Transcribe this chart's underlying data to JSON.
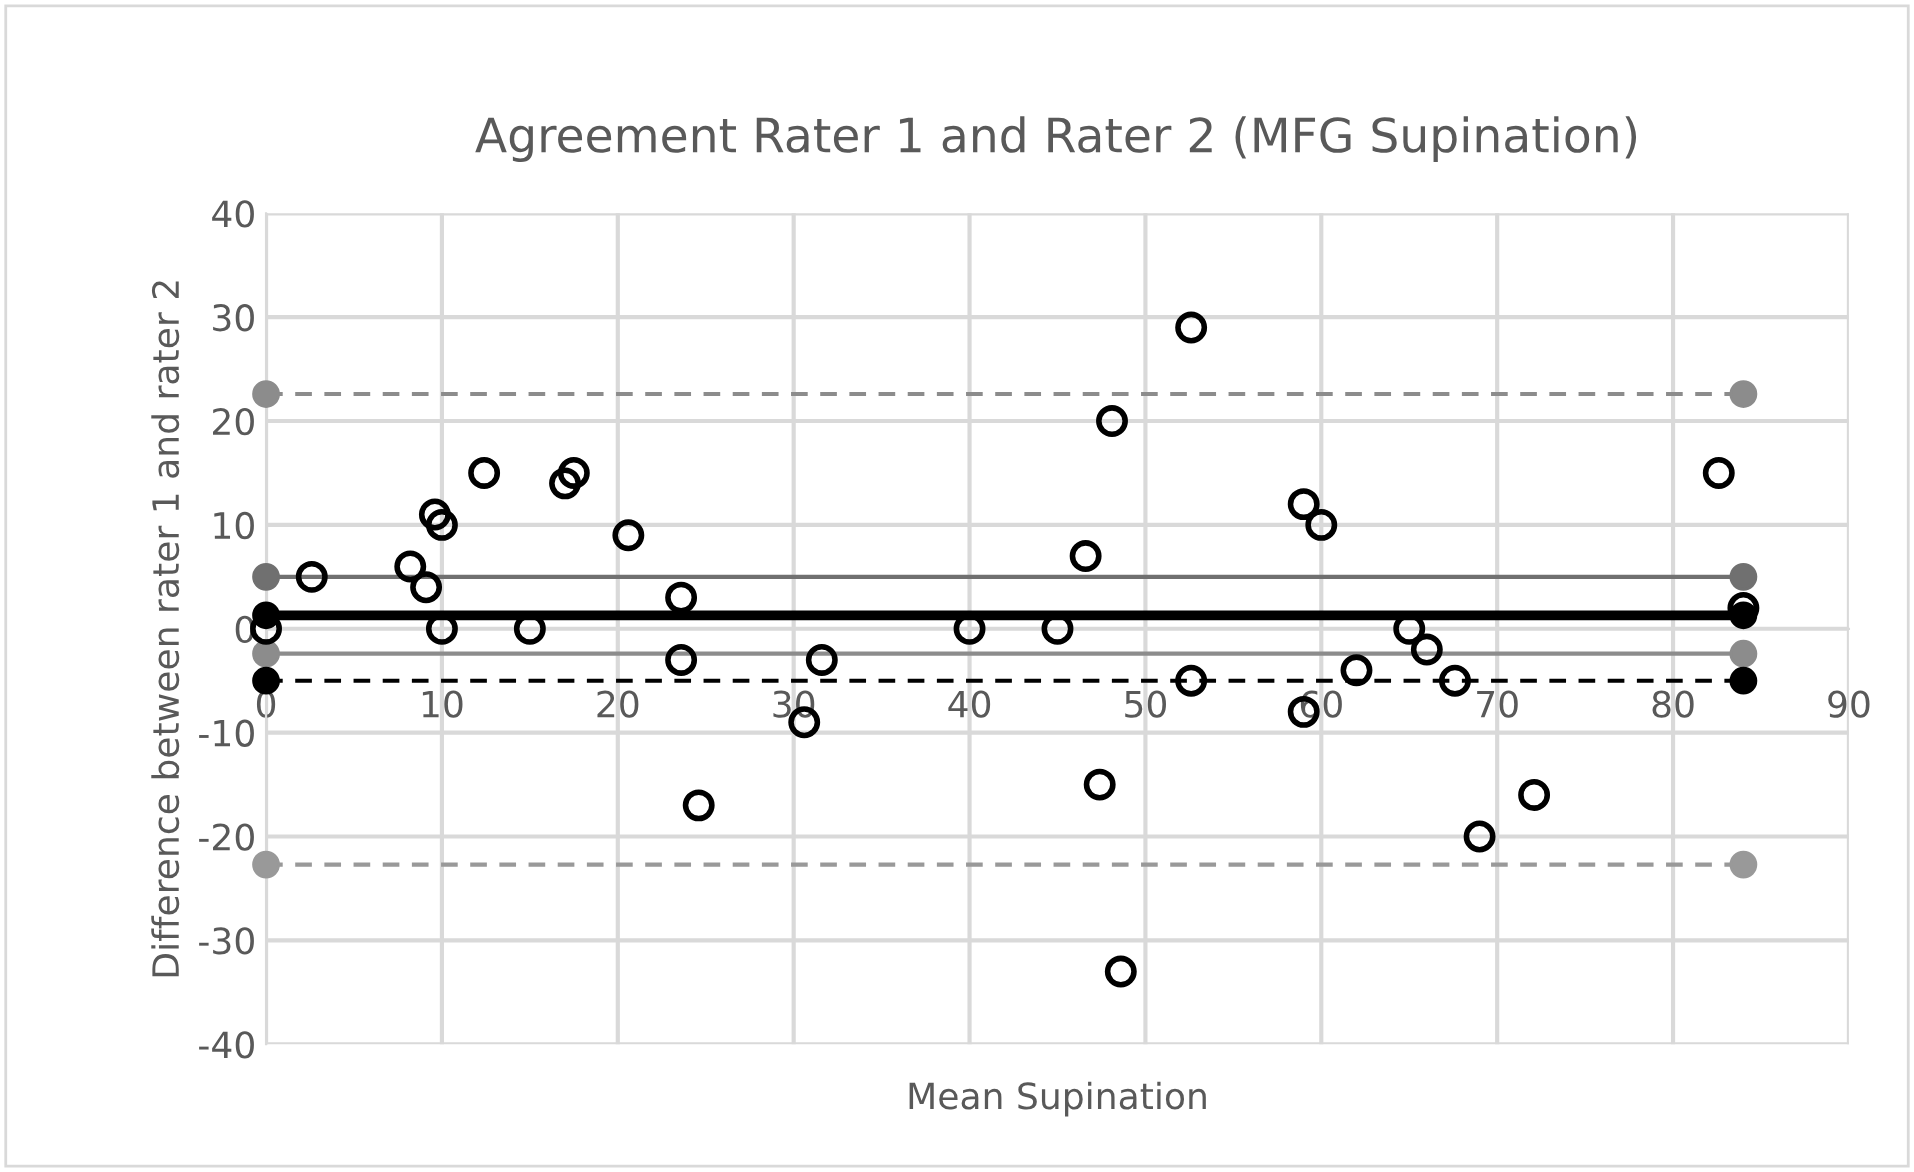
{
  "chart_data": {
    "type": "scatter",
    "title": "Agreement Rater 1 and Rater 2 (MFG Supination)",
    "xlabel": "Mean Supination",
    "ylabel": "Difference between rater 1 and rater 2",
    "xlim": [
      0,
      90
    ],
    "xticks": [
      0,
      10,
      20,
      30,
      40,
      50,
      60,
      70,
      80,
      90
    ],
    "ylim": [
      -40,
      40
    ],
    "yticks": [
      -40,
      -30,
      -20,
      -10,
      0,
      10,
      20,
      30,
      40
    ],
    "grid": true,
    "legend": false,
    "series": [
      {
        "type": "line",
        "x": [
          0,
          84
        ],
        "values": [
          22.6,
          22.6
        ],
        "color": "#8c8c8c",
        "line_style": "dashed",
        "marker": "circle"
      },
      {
        "type": "line",
        "x": [
          0,
          84
        ],
        "values": [
          5,
          5
        ],
        "color": "#707070",
        "line_style": "solid",
        "marker": "circle"
      },
      {
        "type": "line",
        "x": [
          0,
          84
        ],
        "values": [
          1.3,
          1.3
        ],
        "color": "#000000",
        "line_style": "solid",
        "marker": "circle"
      },
      {
        "type": "line",
        "x": [
          0,
          84
        ],
        "values": [
          -2.4,
          -2.4
        ],
        "color": "#8c8c8c",
        "line_style": "solid",
        "marker": "circle"
      },
      {
        "type": "line",
        "x": [
          0,
          84
        ],
        "values": [
          -5,
          -5
        ],
        "color": "#000000",
        "line_style": "dashed",
        "marker": "circle"
      },
      {
        "type": "line",
        "x": [
          0,
          84
        ],
        "values": [
          -22.7,
          -22.7
        ],
        "color": "#999999",
        "line_style": "dashed",
        "marker": "circle"
      },
      {
        "color": "#000000",
        "marker": "circle",
        "x": [
          0,
          2.6,
          8.2,
          9.1,
          9.6,
          10,
          10,
          12.4,
          15,
          17,
          17.5,
          20.6,
          23.6,
          23.6,
          24.6,
          30.6,
          31.6,
          40,
          45,
          46.6,
          47.4,
          48.1,
          48.6,
          52.6,
          52.6,
          59,
          59,
          60,
          62,
          65,
          66,
          67.6,
          69,
          72.1,
          82.6,
          84
        ],
        "values": [
          0,
          5,
          6,
          4,
          11,
          10,
          0,
          15,
          0,
          14,
          15,
          9,
          3,
          -3,
          -17,
          -9,
          -3,
          0,
          0,
          7,
          -15,
          20,
          -33,
          29,
          -5,
          12,
          -8,
          10,
          -4,
          0,
          -2,
          -5,
          -20,
          -16,
          15,
          2
        ]
      }
    ]
  }
}
